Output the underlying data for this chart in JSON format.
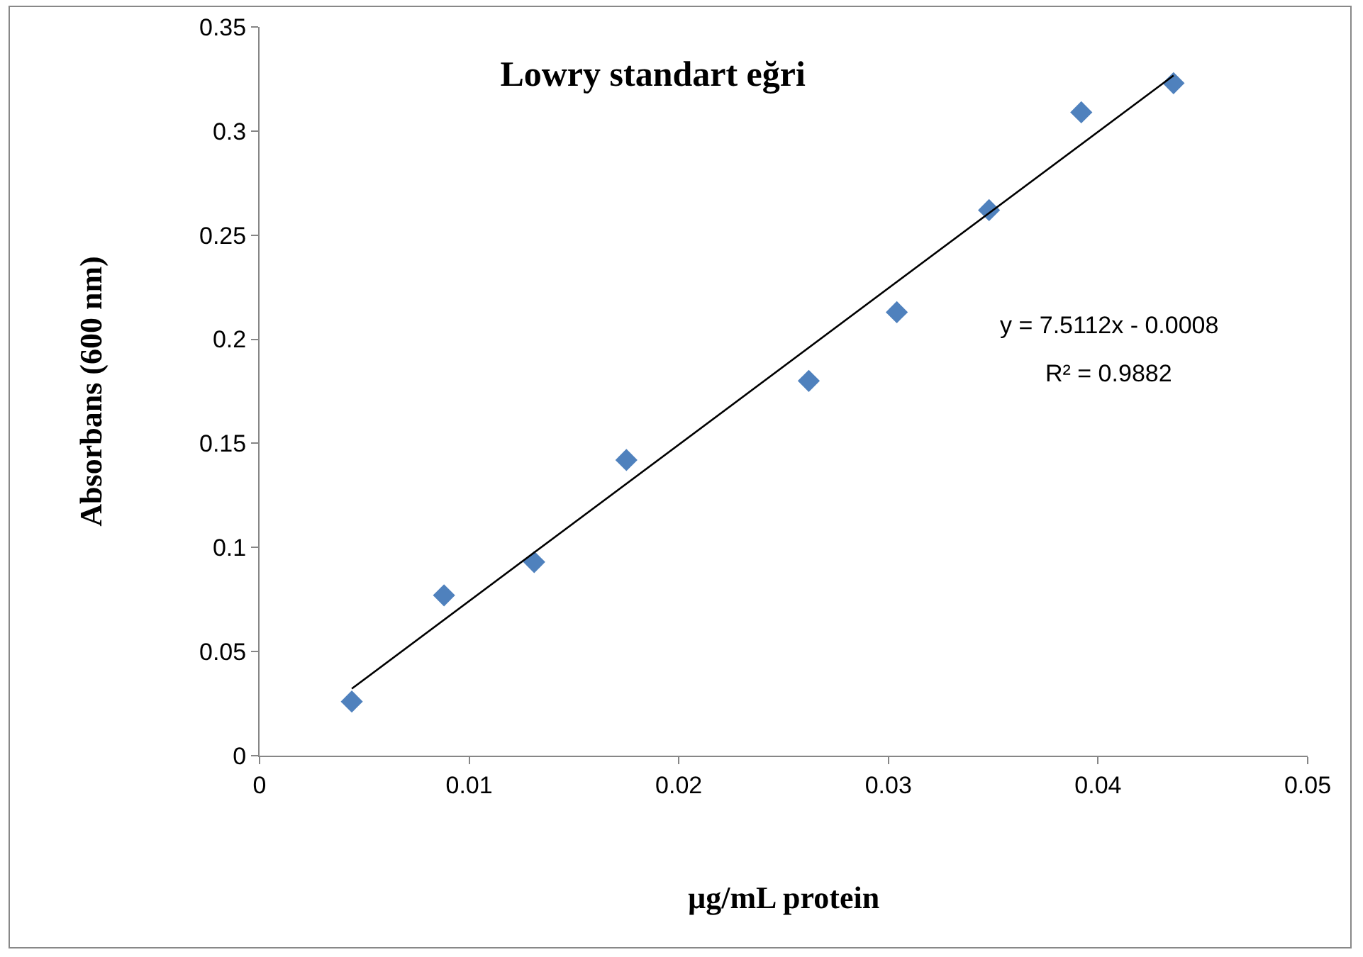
{
  "chart_data": {
    "type": "scatter",
    "title": "Lowry standart eğri",
    "xlabel": "µg/mL protein",
    "ylabel": "Absorbans (600 nm)",
    "annotations": [
      "y = 7.5112x - 0.0008",
      "R² = 0.9882"
    ],
    "series": [
      {
        "type": "scatter",
        "color": "#4f81bd",
        "marker": "diamond",
        "x": [
          0.0044,
          0.0088,
          0.0131,
          0.0175,
          0.0262,
          0.0304,
          0.0348,
          0.0392,
          0.0436
        ],
        "values": [
          0.026,
          0.077,
          0.093,
          0.142,
          0.18,
          0.213,
          0.262,
          0.309,
          0.323
        ]
      },
      {
        "type": "line",
        "color": "#000000",
        "line_style": "solid",
        "x": [
          0.0044,
          0.0436
        ],
        "values": [
          0.0322,
          0.3267
        ]
      }
    ],
    "xlim": [
      0,
      0.05
    ],
    "xticks": [
      0,
      0.01,
      0.02,
      0.03,
      0.04,
      0.05
    ],
    "ylim": [
      0,
      0.35
    ],
    "yticks": [
      0,
      0.05,
      0.1,
      0.15,
      0.2,
      0.25,
      0.3,
      0.35
    ],
    "grid": false
  }
}
